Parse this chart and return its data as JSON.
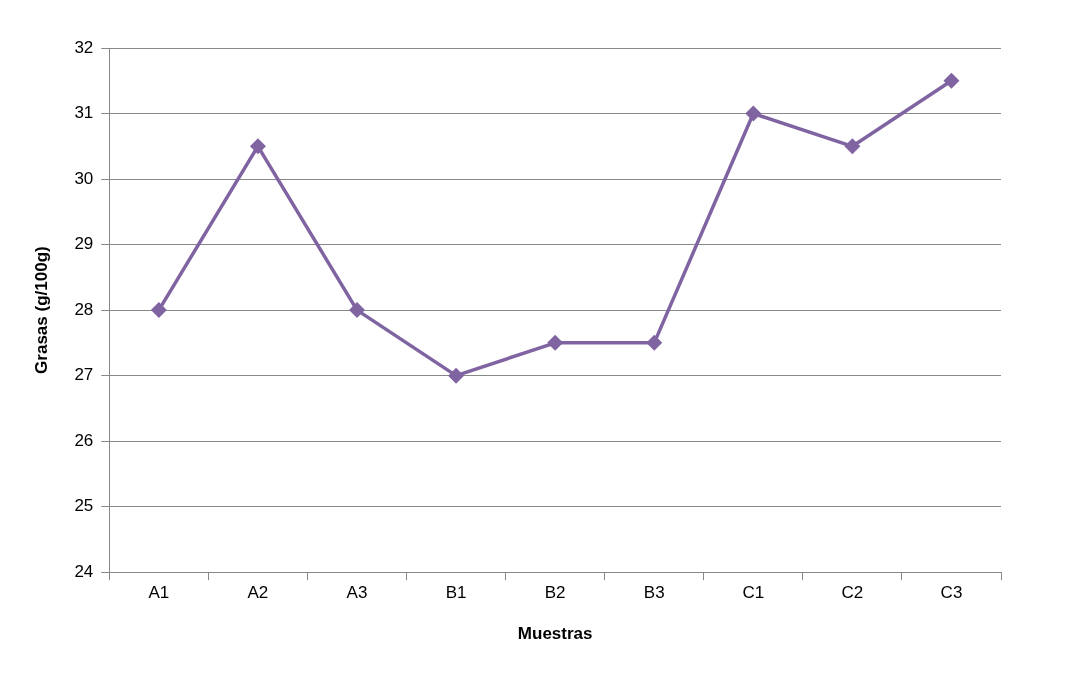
{
  "chart_data": {
    "type": "line",
    "xlabel": "Muestras",
    "ylabel": "Grasas (g/100g)",
    "categories": [
      "A1",
      "A2",
      "A3",
      "B1",
      "B2",
      "B3",
      "C1",
      "C2",
      "C3"
    ],
    "series": [
      {
        "color": "#8064a2",
        "values": [
          28,
          30.5,
          28,
          27,
          27.5,
          27.5,
          31,
          30.5,
          31.5
        ]
      }
    ],
    "ylim": [
      24,
      32
    ],
    "yticks": [
      24,
      25,
      26,
      27,
      28,
      29,
      30,
      31,
      32
    ],
    "grid": "y",
    "legend": false,
    "marker": "diamond",
    "line_style": "solid"
  }
}
